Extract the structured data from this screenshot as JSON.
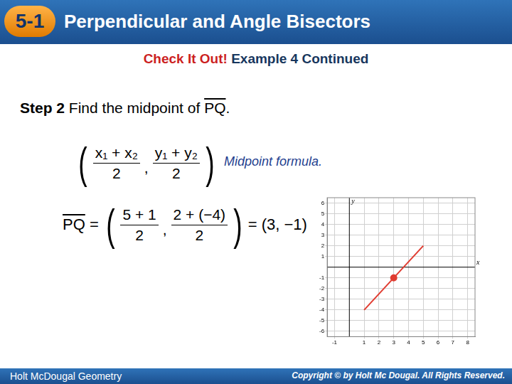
{
  "header": {
    "badge": "5-1",
    "title": "Perpendicular and Angle Bisectors"
  },
  "subtitle": {
    "highlight": "Check It Out!",
    "rest": "Example 4 Continued"
  },
  "step": {
    "label": "Step 2",
    "text": "Find the midpoint of",
    "segment": "PQ",
    "end": "."
  },
  "formula": {
    "fractions": [
      {
        "numerator": "x₁ + x₂",
        "denominator": "2"
      },
      {
        "numerator": "y₁ + y₂",
        "denominator": "2"
      }
    ],
    "separator": ",",
    "note": "Midpoint formula."
  },
  "calculation": {
    "lhs": "PQ",
    "equals": "=",
    "fractions": [
      {
        "numerator": "5 + 1",
        "denominator": "2"
      },
      {
        "numerator": "2 + (−4)",
        "denominator": "2"
      }
    ],
    "separator": ",",
    "result": "= (3, −1)"
  },
  "chart_data": {
    "type": "line",
    "x_label": "x",
    "y_label": "y",
    "xlim": [
      -1.5,
      8.5
    ],
    "ylim": [
      -6.5,
      6.5
    ],
    "xticks": [
      -1,
      1,
      2,
      3,
      4,
      5,
      6,
      7,
      8
    ],
    "yticks": [
      -6,
      -5,
      -4,
      -3,
      -2,
      -1,
      1,
      2,
      3,
      4,
      5,
      6
    ],
    "grid": true,
    "series": [
      {
        "type": "line",
        "color": "#e03c31",
        "x": [
          1,
          5
        ],
        "values": [
          -4,
          2
        ]
      },
      {
        "type": "scatter",
        "color": "#e03c31",
        "marker": "circle",
        "x": [
          3
        ],
        "values": [
          -1
        ]
      }
    ]
  },
  "footer": {
    "left": "Holt McDougal Geometry",
    "right": "Copyright © by Holt Mc Dougal. All Rights Reserved."
  }
}
